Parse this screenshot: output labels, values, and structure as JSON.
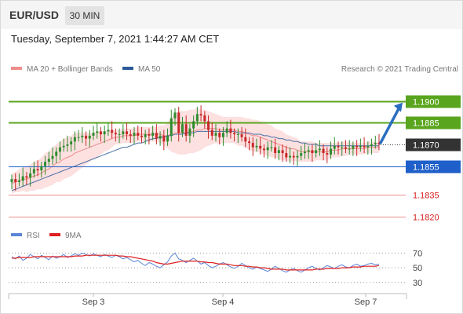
{
  "header": {
    "symbol": "EUR/USD",
    "timeframe": "30 MIN"
  },
  "timestamp": "Tuesday, September 7, 2021 1:44:27 AM CET",
  "legend": {
    "bollinger": "MA 20 + Bollinger Bands",
    "ma50": "MA 50",
    "credit": "Research © 2021 Trading Central"
  },
  "rsi_legend": {
    "rsi": "RSI",
    "ma": "9MA"
  },
  "colors": {
    "resistance": "#5aa51e",
    "support": "#1e5fc9",
    "secondary_support": "#ee8f8f",
    "bollinger_fill": "#fde0e0",
    "ma20": "#f08c8c",
    "ma50": "#4a6fa5",
    "candle_up": "#2e8b2e",
    "candle_down": "#c62828",
    "rsi": "#5b85d6",
    "rsi_ma": "#e01f1f",
    "current_tag": "#333333",
    "arrow": "#2a6dc0"
  },
  "chart_data": [
    {
      "type": "candlestick",
      "title": "",
      "xlabel": "",
      "ylabel": "",
      "x_ticks": [
        "Sep 3",
        "Sep 4",
        "Sep 7"
      ],
      "ylim": [
        1.1813,
        1.1915
      ],
      "current_price": 1.187,
      "levels": [
        {
          "value": 1.19,
          "label": "1.1900",
          "kind": "resistance"
        },
        {
          "value": 1.1885,
          "label": "1.1885",
          "kind": "resistance"
        },
        {
          "value": 1.187,
          "label": "1.1870",
          "kind": "current"
        },
        {
          "value": 1.1855,
          "label": "1.1855",
          "kind": "support"
        },
        {
          "value": 1.1835,
          "label": "1.1835",
          "kind": "secondary"
        },
        {
          "value": 1.182,
          "label": "1.1820",
          "kind": "secondary"
        }
      ],
      "close": [
        1.1846,
        1.1844,
        1.1845,
        1.1848,
        1.1847,
        1.185,
        1.1853,
        1.1852,
        1.1855,
        1.1858,
        1.186,
        1.1862,
        1.1865,
        1.1868,
        1.1869,
        1.187,
        1.1872,
        1.1875,
        1.1875,
        1.1876,
        1.1874,
        1.1876,
        1.1878,
        1.1879,
        1.1877,
        1.1879,
        1.188,
        1.1878,
        1.1877,
        1.1877,
        1.1879,
        1.1877,
        1.1876,
        1.1878,
        1.1876,
        1.1875,
        1.1877,
        1.1876,
        1.1878,
        1.1874,
        1.1876,
        1.1872,
        1.1876,
        1.1888,
        1.1892,
        1.1878,
        1.1884,
        1.1876,
        1.1881,
        1.1886,
        1.1891,
        1.189,
        1.1886,
        1.188,
        1.1876,
        1.1878,
        1.1875,
        1.1878,
        1.1881,
        1.1878,
        1.1877,
        1.1877,
        1.1875,
        1.1872,
        1.1871,
        1.1868,
        1.1869,
        1.1867,
        1.1866,
        1.1868,
        1.1868,
        1.1864,
        1.1866,
        1.1864,
        1.1861,
        1.1862,
        1.1861,
        1.1862,
        1.1864,
        1.1865,
        1.1866,
        1.1864,
        1.1866,
        1.1867,
        1.1864,
        1.1863,
        1.1867,
        1.1869,
        1.1868,
        1.1868,
        1.1867,
        1.1867,
        1.1869,
        1.1868,
        1.1869,
        1.1868,
        1.1869,
        1.187,
        1.1871,
        1.187
      ],
      "up_arrow_target": 1.19,
      "ma20": [
        1.1843,
        1.1844,
        1.1845,
        1.1846,
        1.1846,
        1.1847,
        1.1848,
        1.1849,
        1.185,
        1.1852,
        1.1853,
        1.1855,
        1.1857,
        1.1858,
        1.186,
        1.1861,
        1.1862,
        1.1864,
        1.1865,
        1.1866,
        1.1867,
        1.1868,
        1.1869,
        1.187,
        1.1871,
        1.1872,
        1.1873,
        1.1874,
        1.1875,
        1.1875,
        1.1876,
        1.1876,
        1.1876,
        1.1876,
        1.1877,
        1.1877,
        1.1877,
        1.1877,
        1.1877,
        1.1877,
        1.1877,
        1.1876,
        1.1876,
        1.1877,
        1.1878,
        1.1878,
        1.1878,
        1.1878,
        1.1879,
        1.1879,
        1.188,
        1.188,
        1.1881,
        1.1881,
        1.1881,
        1.1881,
        1.188,
        1.188,
        1.188,
        1.188,
        1.188,
        1.1879,
        1.1879,
        1.1878,
        1.1877,
        1.1876,
        1.1876,
        1.1875,
        1.1874,
        1.1873,
        1.1872,
        1.1871,
        1.187,
        1.1869,
        1.1868,
        1.1867,
        1.1867,
        1.1866,
        1.1865,
        1.1865,
        1.1865,
        1.1865,
        1.1865,
        1.1865,
        1.1865,
        1.1865,
        1.1866,
        1.1866,
        1.1866,
        1.1867,
        1.1867,
        1.1867,
        1.1867,
        1.1867,
        1.1867,
        1.1867,
        1.1868,
        1.1868,
        1.1868,
        1.1868
      ],
      "bb_width": [
        0.0007,
        0.0007,
        0.0008,
        0.0008,
        0.0009,
        0.0009,
        0.001,
        0.001,
        0.0011,
        0.0012,
        0.0012,
        0.0013,
        0.0013,
        0.0014,
        0.0014,
        0.0014,
        0.0014,
        0.0014,
        0.0013,
        0.0012,
        0.0011,
        0.001,
        0.0009,
        0.0009,
        0.0008,
        0.0007,
        0.0007,
        0.0006,
        0.0005,
        0.0005,
        0.0005,
        0.0005,
        0.0005,
        0.0005,
        0.0005,
        0.0005,
        0.0005,
        0.0005,
        0.0005,
        0.0005,
        0.0006,
        0.0007,
        0.0009,
        0.0012,
        0.0014,
        0.0015,
        0.0015,
        0.0015,
        0.0015,
        0.0015,
        0.0015,
        0.0014,
        0.0013,
        0.0012,
        0.0011,
        0.001,
        0.001,
        0.0009,
        0.0009,
        0.0009,
        0.0009,
        0.001,
        0.001,
        0.001,
        0.0011,
        0.0011,
        0.0011,
        0.0011,
        0.0011,
        0.0011,
        0.0011,
        0.001,
        0.001,
        0.001,
        0.0009,
        0.0009,
        0.0008,
        0.0008,
        0.0007,
        0.0007,
        0.0007,
        0.0007,
        0.0006,
        0.0006,
        0.0006,
        0.0006,
        0.0005,
        0.0005,
        0.0005,
        0.0005,
        0.0005,
        0.0004,
        0.0004,
        0.0004,
        0.0004,
        0.0004,
        0.0004,
        0.0004,
        0.0004,
        0.0004
      ],
      "ma50": [
        1.1838,
        1.1839,
        1.184,
        1.1841,
        1.1842,
        1.1843,
        1.1844,
        1.1845,
        1.1846,
        1.1847,
        1.1848,
        1.1849,
        1.185,
        1.1851,
        1.1852,
        1.1853,
        1.1854,
        1.1855,
        1.1856,
        1.1857,
        1.1858,
        1.1859,
        1.186,
        1.1861,
        1.1862,
        1.1863,
        1.1864,
        1.1865,
        1.1866,
        1.1867,
        1.1868,
        1.1868,
        1.1869,
        1.187,
        1.1871,
        1.1871,
        1.1872,
        1.1873,
        1.1874,
        1.1874,
        1.1875,
        1.1875,
        1.1876,
        1.1876,
        1.1877,
        1.1877,
        1.1877,
        1.1878,
        1.1878,
        1.1878,
        1.1879,
        1.1879,
        1.1879,
        1.1879,
        1.1879,
        1.1879,
        1.1879,
        1.1879,
        1.1879,
        1.1879,
        1.1879,
        1.1878,
        1.1878,
        1.1878,
        1.1878,
        1.1877,
        1.1877,
        1.1877,
        1.1876,
        1.1876,
        1.1875,
        1.1875,
        1.1874,
        1.1874,
        1.1873,
        1.1873,
        1.1872,
        1.1872,
        1.1871,
        1.1871,
        1.187,
        1.187,
        1.187,
        1.1869,
        1.1869,
        1.1869,
        1.1869,
        1.1869,
        1.1869,
        1.1869,
        1.1869,
        1.1869,
        1.1869,
        1.1869,
        1.1869,
        1.1869,
        1.1869,
        1.1869,
        1.1869,
        1.1869
      ]
    },
    {
      "type": "line",
      "title": "",
      "xlabel": "",
      "ylabel": "",
      "ylim": [
        18,
        80
      ],
      "y_ticks": [
        70,
        50,
        30
      ],
      "series": [
        {
          "name": "RSI",
          "values": [
            65,
            62,
            66,
            60,
            63,
            68,
            65,
            62,
            67,
            64,
            61,
            66,
            63,
            65,
            68,
            64,
            66,
            69,
            67,
            70,
            68,
            66,
            69,
            67,
            65,
            68,
            66,
            64,
            67,
            65,
            62,
            64,
            61,
            58,
            60,
            56,
            53,
            57,
            55,
            52,
            50,
            54,
            58,
            66,
            70,
            62,
            60,
            57,
            60,
            63,
            59,
            55,
            57,
            53,
            50,
            52,
            55,
            57,
            54,
            51,
            49,
            52,
            56,
            53,
            50,
            48,
            51,
            49,
            47,
            45,
            48,
            52,
            49,
            46,
            44,
            47,
            49,
            46,
            44,
            47,
            50,
            52,
            49,
            47,
            50,
            53,
            51,
            49,
            52,
            54,
            51,
            50,
            53,
            55,
            52,
            53,
            55,
            56,
            54,
            55
          ]
        },
        {
          "name": "9MA",
          "values": [
            63,
            63,
            64,
            64,
            64,
            64,
            65,
            65,
            65,
            65,
            65,
            65,
            65,
            65,
            65,
            65,
            65,
            66,
            66,
            66,
            67,
            67,
            67,
            67,
            67,
            67,
            67,
            67,
            67,
            66,
            66,
            65,
            65,
            64,
            63,
            62,
            61,
            60,
            59,
            57,
            56,
            55,
            55,
            56,
            57,
            58,
            59,
            59,
            59,
            59,
            59,
            58,
            58,
            57,
            57,
            56,
            55,
            55,
            55,
            54,
            53,
            53,
            53,
            52,
            52,
            51,
            51,
            50,
            50,
            49,
            48,
            48,
            48,
            48,
            47,
            47,
            47,
            47,
            47,
            47,
            47,
            47,
            48,
            48,
            48,
            49,
            49,
            49,
            49,
            50,
            50,
            50,
            51,
            51,
            51,
            52,
            52,
            52,
            52,
            53
          ]
        }
      ]
    }
  ]
}
